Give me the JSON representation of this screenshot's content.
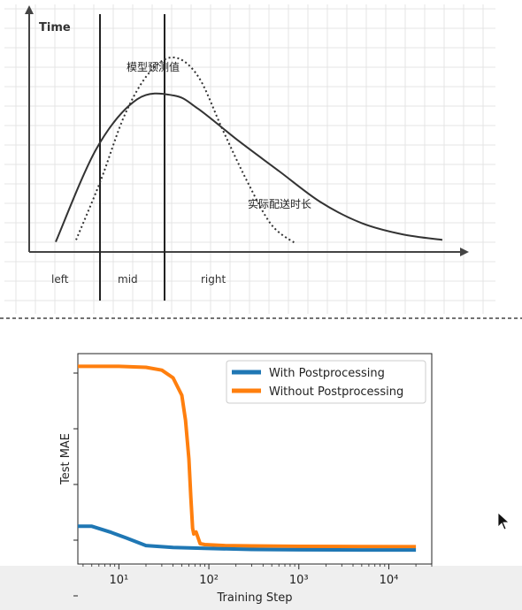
{
  "chart_data": [
    {
      "type": "line",
      "title": "",
      "ylabel": "Time",
      "xlabel": "",
      "regions": [
        "left",
        "mid",
        "right"
      ],
      "grid": true,
      "series": [
        {
          "name": "模型预测值",
          "style": "dotted",
          "x": [
            0.1,
            0.16,
            0.22,
            0.28,
            0.34,
            0.4,
            0.46,
            0.52,
            0.58,
            0.64
          ],
          "y": [
            0.04,
            0.35,
            0.7,
            0.92,
            1.0,
            0.9,
            0.62,
            0.35,
            0.12,
            0.02
          ]
        },
        {
          "name": "实际配送时长",
          "style": "solid",
          "x": [
            0.05,
            0.15,
            0.25,
            0.34,
            0.4,
            0.5,
            0.6,
            0.7,
            0.8,
            0.9,
            1.0
          ],
          "y": [
            0.03,
            0.52,
            0.78,
            0.8,
            0.73,
            0.56,
            0.4,
            0.24,
            0.13,
            0.07,
            0.04
          ]
        }
      ]
    },
    {
      "type": "line",
      "title": "",
      "xlabel": "Training Step",
      "ylabel": "Test MAE",
      "xscale": "log",
      "xlim": [
        3.5,
        30000
      ],
      "ylim": [
        0,
        1
      ],
      "xticks": [
        {
          "value": 10,
          "label": "10¹"
        },
        {
          "value": 100,
          "label": "10²"
        },
        {
          "value": 1000,
          "label": "10³"
        },
        {
          "value": 10000,
          "label": "10⁴"
        }
      ],
      "legend": "top-right",
      "series": [
        {
          "name": "With Postprocessing",
          "color": "#1f77b4",
          "x": [
            3.5,
            5,
            8,
            12,
            20,
            40,
            100,
            300,
            1000,
            5000,
            20000
          ],
          "y": [
            0.15,
            0.15,
            0.12,
            0.09,
            0.05,
            0.04,
            0.035,
            0.03,
            0.028,
            0.027,
            0.027
          ]
        },
        {
          "name": "Without Postprocessing",
          "color": "#ff7f0e",
          "x": [
            3.5,
            10,
            20,
            30,
            40,
            50,
            55,
            60,
            63,
            66,
            68,
            72,
            76,
            80,
            90,
            150,
            300,
            1000,
            5000,
            20000
          ],
          "y": [
            0.98,
            0.98,
            0.975,
            0.96,
            0.92,
            0.83,
            0.7,
            0.5,
            0.3,
            0.14,
            0.11,
            0.12,
            0.09,
            0.06,
            0.055,
            0.05,
            0.048,
            0.046,
            0.045,
            0.044
          ]
        }
      ]
    }
  ]
}
